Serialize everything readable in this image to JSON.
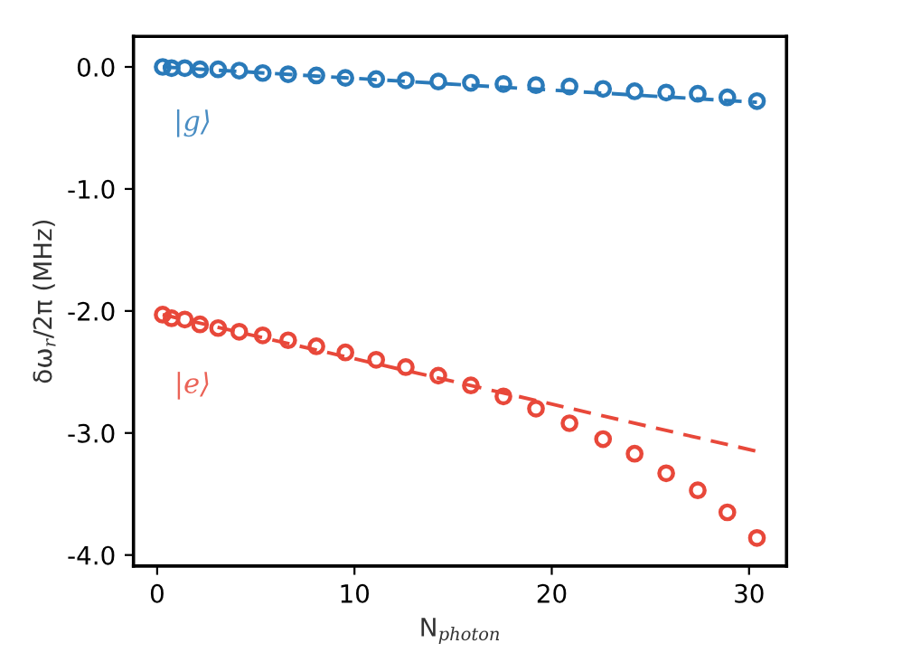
{
  "chart_data": {
    "type": "scatter",
    "xlabel": "N$_{photon}$",
    "ylabel": "δω$_{r}$/2π (MHz)",
    "xlim": [
      -1.2,
      31.9
    ],
    "ylim": [
      -4.09,
      0.25
    ],
    "xticks": [
      0,
      10,
      20,
      30
    ],
    "yticks": [
      {
        "value": 0,
        "label": "0.0"
      },
      {
        "value": -1,
        "label": "-1.0"
      },
      {
        "value": -2,
        "label": "-2.0"
      },
      {
        "value": -3,
        "label": "-3.0"
      },
      {
        "value": -4,
        "label": "-4.0"
      }
    ],
    "grid": false,
    "legend": false,
    "series": [
      {
        "name": "|g⟩",
        "color": "#2a7ab9",
        "marker": "circle",
        "x": [
          0.28,
          0.73,
          1.4,
          2.17,
          3.09,
          4.16,
          5.35,
          6.64,
          8.07,
          9.54,
          11.1,
          12.6,
          14.25,
          15.9,
          17.55,
          19.2,
          20.9,
          22.6,
          24.2,
          25.8,
          27.4,
          28.9,
          30.4
        ],
        "values": [
          0.0,
          -0.01,
          -0.01,
          -0.02,
          -0.02,
          -0.03,
          -0.05,
          -0.06,
          -0.07,
          -0.09,
          -0.1,
          -0.11,
          -0.12,
          -0.13,
          -0.14,
          -0.15,
          -0.16,
          -0.18,
          -0.2,
          -0.21,
          -0.22,
          -0.25,
          -0.28
        ]
      },
      {
        "color": "#2a7ab9",
        "type": "line",
        "line_style": "dashed",
        "x": [
          0.28,
          30.4
        ],
        "values": [
          0.0,
          -0.29
        ]
      },
      {
        "name": "|e⟩",
        "color": "#e8483a",
        "marker": "circle",
        "x": [
          0.28,
          0.73,
          1.4,
          2.17,
          3.09,
          4.16,
          5.35,
          6.64,
          8.07,
          9.54,
          11.1,
          12.6,
          14.25,
          15.9,
          17.55,
          19.2,
          20.9,
          22.6,
          24.2,
          25.8,
          27.4,
          28.9,
          30.4
        ],
        "values": [
          -2.03,
          -2.06,
          -2.07,
          -2.11,
          -2.14,
          -2.17,
          -2.2,
          -2.24,
          -2.29,
          -2.34,
          -2.4,
          -2.46,
          -2.53,
          -2.61,
          -2.7,
          -2.8,
          -2.92,
          -3.05,
          -3.17,
          -3.33,
          -3.47,
          -3.65,
          -3.86
        ]
      },
      {
        "color": "#e8483a",
        "type": "line",
        "line_style": "dashed",
        "x": [
          0.28,
          30.4
        ],
        "values": [
          -2.03,
          -3.15
        ]
      }
    ]
  }
}
